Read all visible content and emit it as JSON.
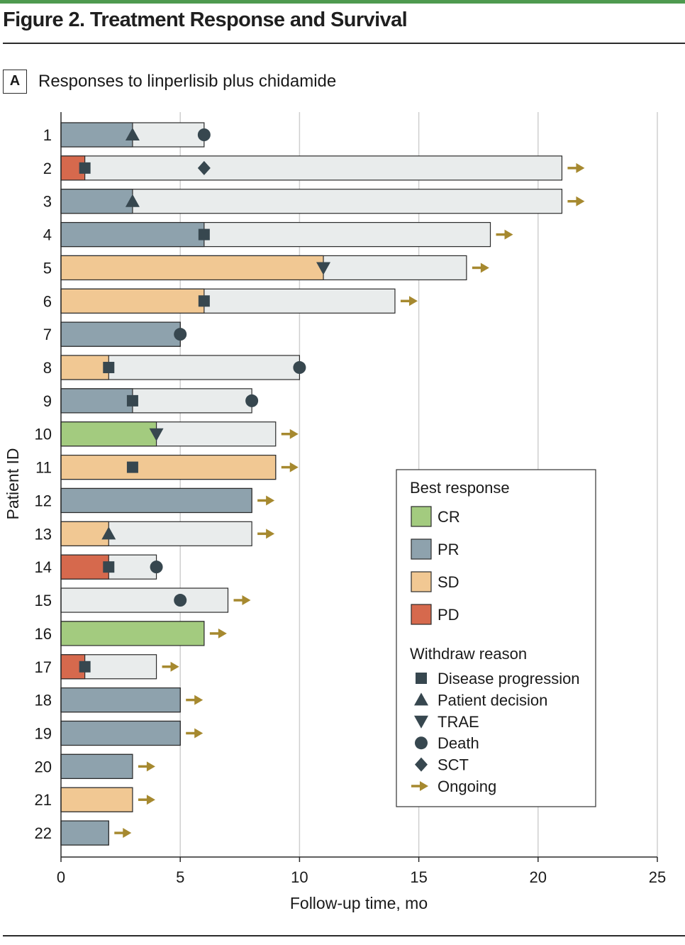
{
  "figure_title": "Figure 2. Treatment Response and Survival",
  "panel_label": "A",
  "panel_title": "Responses to linperlisib plus chidamide",
  "colors": {
    "CR": "#a3cb7f",
    "PR": "#8ea2ad",
    "SD": "#f1c893",
    "PD": "#d6694d",
    "followup": "#e9ecec",
    "marker": "#37474f",
    "ongoing": "#a6892f",
    "grid": "#cfcfcf",
    "accent": "#4e9a4f"
  },
  "legend": {
    "response_title": "Best response",
    "responses": [
      {
        "key": "CR",
        "label": "CR"
      },
      {
        "key": "PR",
        "label": "PR"
      },
      {
        "key": "SD",
        "label": "SD"
      },
      {
        "key": "PD",
        "label": "PD"
      }
    ],
    "reason_title": "Withdraw reason",
    "reasons": [
      {
        "key": "square",
        "label": "Disease progression"
      },
      {
        "key": "triangle-up",
        "label": "Patient decision"
      },
      {
        "key": "triangle-down",
        "label": "TRAE"
      },
      {
        "key": "circle",
        "label": "Death"
      },
      {
        "key": "diamond",
        "label": "SCT"
      },
      {
        "key": "arrow",
        "label": "Ongoing"
      }
    ]
  },
  "chart_data": {
    "type": "bar",
    "orientation": "horizontal",
    "xlabel": "Follow-up time, mo",
    "ylabel": "Patient ID",
    "xlim": [
      0,
      25
    ],
    "xticks": [
      0,
      5,
      10,
      15,
      20,
      25
    ],
    "grid": true,
    "legend_position": "right",
    "patients": [
      {
        "id": "1",
        "response": "PR",
        "response_end": 3,
        "total": 6,
        "markers": [
          {
            "type": "triangle-up",
            "x": 3
          },
          {
            "type": "circle",
            "x": 6
          }
        ],
        "ongoing": false
      },
      {
        "id": "2",
        "response": "PD",
        "response_end": 1,
        "total": 21,
        "markers": [
          {
            "type": "square",
            "x": 1
          },
          {
            "type": "diamond",
            "x": 6
          }
        ],
        "ongoing": true
      },
      {
        "id": "3",
        "response": "PR",
        "response_end": 3,
        "total": 21,
        "markers": [
          {
            "type": "triangle-up",
            "x": 3
          }
        ],
        "ongoing": true
      },
      {
        "id": "4",
        "response": "PR",
        "response_end": 6,
        "total": 18,
        "markers": [
          {
            "type": "square",
            "x": 6
          }
        ],
        "ongoing": true
      },
      {
        "id": "5",
        "response": "SD",
        "response_end": 11,
        "total": 17,
        "markers": [
          {
            "type": "triangle-down",
            "x": 11
          }
        ],
        "ongoing": true
      },
      {
        "id": "6",
        "response": "SD",
        "response_end": 6,
        "total": 14,
        "markers": [
          {
            "type": "square",
            "x": 6
          }
        ],
        "ongoing": true
      },
      {
        "id": "7",
        "response": "PR",
        "response_end": 5,
        "total": 5,
        "markers": [
          {
            "type": "circle",
            "x": 5
          }
        ],
        "ongoing": false
      },
      {
        "id": "8",
        "response": "SD",
        "response_end": 2,
        "total": 10,
        "markers": [
          {
            "type": "square",
            "x": 2
          },
          {
            "type": "circle",
            "x": 10
          }
        ],
        "ongoing": false
      },
      {
        "id": "9",
        "response": "PR",
        "response_end": 3,
        "total": 8,
        "markers": [
          {
            "type": "square",
            "x": 3
          },
          {
            "type": "circle",
            "x": 8
          }
        ],
        "ongoing": false
      },
      {
        "id": "10",
        "response": "CR",
        "response_end": 4,
        "total": 9,
        "markers": [
          {
            "type": "triangle-down",
            "x": 4
          }
        ],
        "ongoing": true
      },
      {
        "id": "11",
        "response": "SD",
        "response_end": 9,
        "total": 9,
        "markers": [
          {
            "type": "square",
            "x": 3
          }
        ],
        "ongoing": true
      },
      {
        "id": "12",
        "response": "PR",
        "response_end": 8,
        "total": 8,
        "markers": [],
        "ongoing": true
      },
      {
        "id": "13",
        "response": "SD",
        "response_end": 2,
        "total": 8,
        "markers": [
          {
            "type": "triangle-up",
            "x": 2
          }
        ],
        "ongoing": true
      },
      {
        "id": "14",
        "response": "PD",
        "response_end": 2,
        "total": 4,
        "markers": [
          {
            "type": "square",
            "x": 2
          },
          {
            "type": "circle",
            "x": 4
          }
        ],
        "ongoing": false
      },
      {
        "id": "15",
        "response": null,
        "response_end": 0,
        "total": 7,
        "markers": [
          {
            "type": "circle",
            "x": 5
          }
        ],
        "ongoing": true
      },
      {
        "id": "16",
        "response": "CR",
        "response_end": 6,
        "total": 6,
        "markers": [],
        "ongoing": true
      },
      {
        "id": "17",
        "response": "PD",
        "response_end": 1,
        "total": 4,
        "markers": [
          {
            "type": "square",
            "x": 1
          }
        ],
        "ongoing": true
      },
      {
        "id": "18",
        "response": "PR",
        "response_end": 5,
        "total": 5,
        "markers": [],
        "ongoing": true
      },
      {
        "id": "19",
        "response": "PR",
        "response_end": 5,
        "total": 5,
        "markers": [],
        "ongoing": true
      },
      {
        "id": "20",
        "response": "PR",
        "response_end": 3,
        "total": 3,
        "markers": [],
        "ongoing": true
      },
      {
        "id": "21",
        "response": "SD",
        "response_end": 3,
        "total": 3,
        "markers": [],
        "ongoing": true
      },
      {
        "id": "22",
        "response": "PR",
        "response_end": 2,
        "total": 2,
        "markers": [],
        "ongoing": true
      }
    ]
  }
}
